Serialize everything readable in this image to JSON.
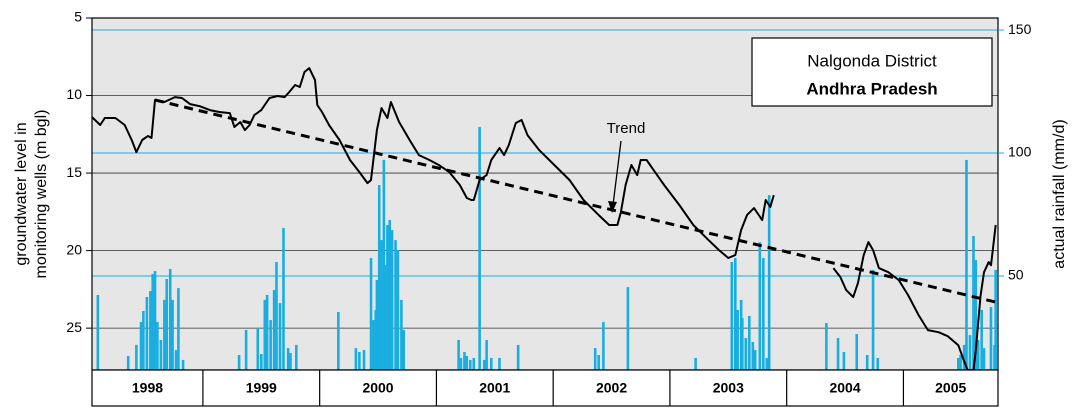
{
  "chart_data": {
    "type": "line",
    "ylabel": [
      "groundwater level in",
      "monitoring wells (m bgl)"
    ],
    "y2label": "actual rainfall (mm/d)",
    "box_lines": [
      "Nalgonda District",
      "Andhra Pradesh"
    ],
    "annotations": [
      {
        "text": "Trend"
      }
    ],
    "categories": [
      "1998",
      "1999",
      "2000",
      "2001",
      "2002",
      "2003",
      "2004",
      "2005"
    ],
    "xlim": [
      1998.05,
      2005.81
    ],
    "ylim": [
      27.7,
      5
    ],
    "yticks": [
      5,
      10,
      15,
      20,
      25
    ],
    "y2lim": [
      11.8,
      154.9
    ],
    "y2ticks": [
      50,
      100,
      150
    ],
    "y2color": "#1aaee0",
    "grid": true,
    "series": [
      {
        "type": "line",
        "color": "#000000",
        "x": [
          1998.05,
          1998.12,
          1998.16,
          1998.25,
          1998.33,
          1998.39,
          1998.43,
          1998.48,
          1998.53,
          1998.56,
          1998.59,
          1998.67,
          1998.76,
          1998.82,
          1998.89,
          1998.97,
          1999.06,
          1999.14,
          1999.23,
          1999.27,
          1999.32,
          1999.36,
          1999.4,
          1999.44,
          1999.5,
          1999.57,
          1999.64,
          1999.7,
          1999.74,
          1999.79,
          1999.83,
          1999.87,
          1999.91,
          1999.96,
          1999.98,
          2000.02,
          2000.08,
          2000.17,
          2000.26,
          2000.34,
          2000.41,
          2000.44,
          2000.49,
          2000.53,
          2000.58,
          2000.61,
          2000.68,
          2000.77,
          2000.85,
          2000.94,
          2001.02,
          2001.11,
          2001.2,
          2001.26,
          2001.3,
          2001.32,
          2001.37,
          2001.43,
          2001.47,
          2001.54,
          2001.58,
          2001.62,
          2001.68,
          2001.73,
          2001.78,
          2001.88,
          2002.01,
          2002.14,
          2002.26,
          2002.39,
          2002.48,
          2002.55,
          2002.58,
          2002.62,
          2002.67,
          2002.72,
          2002.75,
          2002.8,
          2002.86,
          2002.95,
          2003.08,
          2003.2,
          2003.33,
          2003.42,
          2003.5,
          2003.56,
          2003.61,
          2003.66,
          2003.72,
          2003.79,
          2003.82,
          2003.86,
          2003.89,
          null,
          2004.4,
          2004.46,
          2004.51,
          2004.57,
          2004.61,
          2004.66,
          2004.7,
          2004.74,
          2004.79,
          2004.87,
          2004.96,
          2005.04,
          2005.13,
          2005.21,
          2005.3,
          2005.38,
          2005.47,
          2005.51,
          2005.55,
          2005.6,
          2005.62,
          2005.66,
          2005.69,
          2005.73,
          2005.75,
          2005.79
        ],
        "values": [
          11.39,
          11.9,
          11.45,
          11.45,
          11.9,
          12.87,
          13.65,
          12.87,
          12.61,
          12.74,
          10.29,
          10.42,
          10.1,
          10.16,
          10.55,
          10.68,
          10.94,
          11.06,
          11.13,
          12.03,
          11.71,
          12.23,
          11.9,
          11.26,
          10.94,
          10.16,
          10.03,
          10.1,
          9.77,
          9.32,
          9.45,
          8.48,
          8.23,
          9.0,
          10.61,
          11.06,
          11.9,
          12.87,
          14.16,
          14.94,
          15.65,
          15.45,
          12.23,
          10.81,
          11.45,
          10.42,
          11.71,
          12.87,
          13.84,
          14.16,
          14.48,
          14.94,
          15.77,
          16.61,
          16.74,
          16.74,
          15.45,
          15.13,
          14.16,
          13.39,
          13.84,
          13.19,
          11.77,
          11.58,
          12.55,
          13.52,
          14.48,
          15.45,
          16.74,
          17.71,
          18.35,
          18.35,
          17.52,
          15.77,
          14.48,
          15.13,
          14.16,
          14.16,
          14.81,
          15.77,
          17.06,
          18.35,
          19.32,
          19.97,
          20.48,
          20.29,
          18.68,
          17.71,
          17.26,
          18.03,
          16.74,
          17.19,
          16.42,
          null,
          21.13,
          21.71,
          22.55,
          23.0,
          22.1,
          20.29,
          19.45,
          19.97,
          21.13,
          21.39,
          21.9,
          22.87,
          24.16,
          25.13,
          25.26,
          25.52,
          26.1,
          26.94,
          27.7,
          27.7,
          26.42,
          22.94,
          21.39,
          20.74,
          20.94,
          18.35
        ]
      },
      {
        "type": "line",
        "color": "#000000",
        "dashed": true,
        "x": [
          1998.59,
          2005.79
        ],
        "values": [
          10.29,
          23.32
        ]
      },
      {
        "type": "bar",
        "axis": "y2",
        "color": "#1aaee0",
        "x": [
          1998.1,
          1998.36,
          1998.43,
          1998.47,
          1998.49,
          1998.52,
          1998.55,
          1998.57,
          1998.59,
          1998.61,
          1998.64,
          1998.67,
          1998.69,
          1998.72,
          1998.74,
          1998.77,
          1998.79,
          1998.83,
          1999.31,
          1999.37,
          1999.47,
          1999.5,
          1999.53,
          1999.55,
          1999.58,
          1999.61,
          1999.63,
          1999.66,
          1999.69,
          1999.73,
          1999.75,
          1999.8,
          2000.16,
          2000.31,
          2000.34,
          2000.38,
          2000.44,
          2000.46,
          2000.48,
          2000.49,
          2000.51,
          2000.53,
          2000.55,
          2000.56,
          2000.58,
          2000.6,
          2000.62,
          2000.65,
          2000.67,
          2000.7,
          2000.72,
          2001.19,
          2001.21,
          2001.24,
          2001.26,
          2001.29,
          2001.32,
          2001.37,
          2001.41,
          2001.43,
          2001.47,
          2001.54,
          2001.7,
          2002.36,
          2002.39,
          2002.43,
          2002.64,
          2003.22,
          2003.53,
          2003.56,
          2003.58,
          2003.61,
          2003.62,
          2003.65,
          2003.68,
          2003.71,
          2003.73,
          2003.77,
          2003.8,
          2003.83,
          2003.85,
          2004.34,
          2004.44,
          2004.49,
          2004.6,
          2004.69,
          2004.74,
          2004.78,
          2005.47,
          2005.49,
          2005.52,
          2005.54,
          2005.57,
          2005.6,
          2005.62,
          2005.64,
          2005.67,
          2005.69,
          2005.75,
          2005.78,
          2005.79
        ],
        "values": [
          42.3,
          17.5,
          22.0,
          31.3,
          35.8,
          41.5,
          43.9,
          50.8,
          52.0,
          31.3,
          24.0,
          40.3,
          48.8,
          52.9,
          40.3,
          19.9,
          45.1,
          15.9,
          17.9,
          28.1,
          28.9,
          18.3,
          40.3,
          42.3,
          32.1,
          44.3,
          55.7,
          39.0,
          69.5,
          20.7,
          18.7,
          22.0,
          35.4,
          20.7,
          19.1,
          19.9,
          57.3,
          32.1,
          36.2,
          48.4,
          87.0,
          64.6,
          97.2,
          54.5,
          70.7,
          72.8,
          68.7,
          64.6,
          60.6,
          40.3,
          28.1,
          24.0,
          16.7,
          19.1,
          17.5,
          15.9,
          16.7,
          110.6,
          15.9,
          24.0,
          16.7,
          16.7,
          22.0,
          20.7,
          17.9,
          31.3,
          45.5,
          16.7,
          55.7,
          57.3,
          36.2,
          40.3,
          32.9,
          24.8,
          33.8,
          23.2,
          19.9,
          63.8,
          57.3,
          16.7,
          82.9,
          30.9,
          24.8,
          19.1,
          26.4,
          17.9,
          52.5,
          16.7,
          16.7,
          17.9,
          22.0,
          97.2,
          26.0,
          66.3,
          56.5,
          24.0,
          36.2,
          20.7,
          37.4,
          22.0,
          52.5
        ]
      }
    ]
  }
}
